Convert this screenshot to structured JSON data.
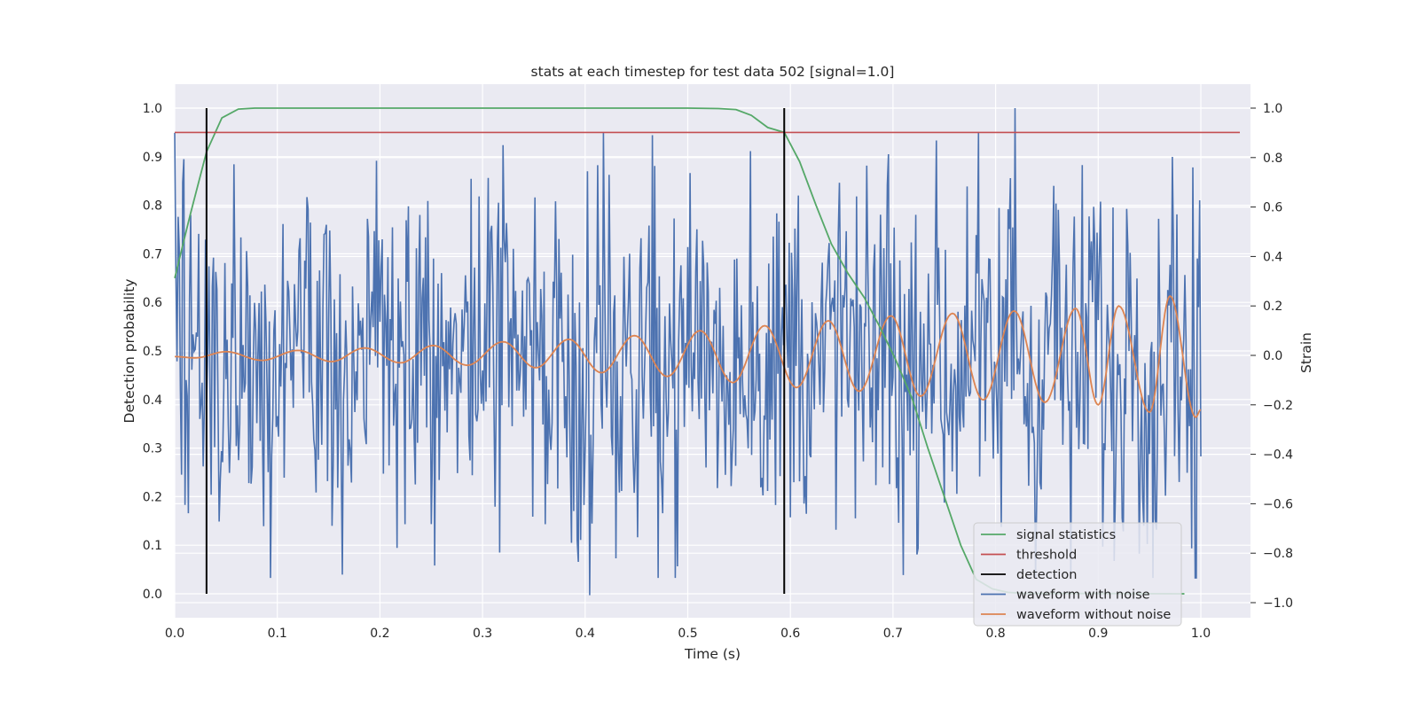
{
  "chart_data": {
    "type": "line",
    "title": "stats at each timestep for test data 502 [signal=1.0]",
    "xlabel": "Time (s)",
    "ylabel_left": "Detection probability",
    "ylabel_right": "Strain",
    "xlim": [
      0.0,
      1.05
    ],
    "ylim_left": [
      -0.05,
      1.05
    ],
    "ylim_right": [
      -1.05,
      1.1
    ],
    "x_ticks": [
      "0.0",
      "0.1",
      "0.2",
      "0.3",
      "0.4",
      "0.5",
      "0.6",
      "0.7",
      "0.8",
      "0.9",
      "1.0"
    ],
    "y_left_ticks": [
      "0.0",
      "0.1",
      "0.2",
      "0.3",
      "0.4",
      "0.5",
      "0.6",
      "0.7",
      "0.8",
      "0.9",
      "1.0"
    ],
    "y_right_ticks": [
      "−1.0",
      "−0.8",
      "−0.6",
      "−0.4",
      "−0.2",
      "0.0",
      "0.2",
      "0.4",
      "0.6",
      "0.8",
      "1.0"
    ],
    "grid": true,
    "legend_position": "lower-right",
    "threshold": 0.95,
    "detections": [
      0.031,
      0.594
    ],
    "signal_statistics": {
      "x": [
        0.0,
        0.015,
        0.031,
        0.046,
        0.062,
        0.078,
        0.5,
        0.53,
        0.547,
        0.562,
        0.578,
        0.594,
        0.609,
        0.625,
        0.64,
        0.656,
        0.672,
        0.687,
        0.703,
        0.719,
        0.734,
        0.75,
        0.766,
        0.781,
        0.797,
        0.812,
        0.828,
        0.984
      ],
      "y": [
        0.65,
        0.78,
        0.91,
        0.98,
        0.998,
        1.0,
        1.0,
        0.999,
        0.997,
        0.985,
        0.96,
        0.95,
        0.89,
        0.8,
        0.72,
        0.66,
        0.61,
        0.55,
        0.48,
        0.4,
        0.3,
        0.2,
        0.1,
        0.03,
        0.01,
        0.003,
        0.001,
        0.0
      ]
    },
    "waveform_without_noise": {
      "description_free": true,
      "x_start": 0.0,
      "x_end": 1.0,
      "peaks": [
        {
          "x": 0.0,
          "y": -0.005
        },
        {
          "x": 0.05,
          "y": 0.015
        },
        {
          "x": 0.12,
          "y": 0.02
        },
        {
          "x": 0.185,
          "y": 0.03
        },
        {
          "x": 0.252,
          "y": 0.04
        },
        {
          "x": 0.32,
          "y": 0.055
        },
        {
          "x": 0.384,
          "y": 0.065
        },
        {
          "x": 0.448,
          "y": 0.08
        },
        {
          "x": 0.512,
          "y": 0.1
        },
        {
          "x": 0.575,
          "y": 0.12
        },
        {
          "x": 0.637,
          "y": 0.14
        },
        {
          "x": 0.698,
          "y": 0.16
        },
        {
          "x": 0.758,
          "y": 0.17
        },
        {
          "x": 0.818,
          "y": 0.18
        },
        {
          "x": 0.878,
          "y": 0.19
        },
        {
          "x": 0.92,
          "y": 0.2
        },
        {
          "x": 0.97,
          "y": 0.24
        }
      ],
      "troughs": [
        {
          "x": 0.02,
          "y": -0.01
        },
        {
          "x": 0.085,
          "y": -0.02
        },
        {
          "x": 0.153,
          "y": -0.025
        },
        {
          "x": 0.22,
          "y": -0.03
        },
        {
          "x": 0.285,
          "y": -0.04
        },
        {
          "x": 0.352,
          "y": -0.05
        },
        {
          "x": 0.416,
          "y": -0.07
        },
        {
          "x": 0.48,
          "y": -0.085
        },
        {
          "x": 0.544,
          "y": -0.11
        },
        {
          "x": 0.606,
          "y": -0.13
        },
        {
          "x": 0.667,
          "y": -0.145
        },
        {
          "x": 0.727,
          "y": -0.165
        },
        {
          "x": 0.788,
          "y": -0.18
        },
        {
          "x": 0.848,
          "y": -0.19
        },
        {
          "x": 0.9,
          "y": -0.2
        },
        {
          "x": 0.95,
          "y": -0.23
        },
        {
          "x": 0.995,
          "y": -0.25
        }
      ],
      "end": {
        "x": 1.0,
        "y": -0.22
      }
    },
    "waveform_with_noise": {
      "x_start": 0.0,
      "x_end": 1.0,
      "min": -0.97,
      "max": 1.0,
      "notable_points": [
        {
          "x": 0.253,
          "y": 0.94
        },
        {
          "x": 0.253,
          "y": -0.85
        },
        {
          "x": 0.404,
          "y": -0.97
        },
        {
          "x": 0.819,
          "y": 1.0
        },
        {
          "x": 0.995,
          "y": -0.9
        }
      ]
    },
    "series": [
      {
        "name": "signal statistics",
        "color": "#55a868",
        "axis": "left"
      },
      {
        "name": "threshold",
        "color": "#c44e52",
        "axis": "left"
      },
      {
        "name": "detection",
        "color": "#000000",
        "axis": "left"
      },
      {
        "name": "waveform with noise",
        "color": "#4c72b0",
        "axis": "right"
      },
      {
        "name": "waveform without noise",
        "color": "#dd8452",
        "axis": "right"
      }
    ]
  },
  "colors": {
    "plot_background": "#eaeaf2",
    "grid": "#ffffff"
  }
}
